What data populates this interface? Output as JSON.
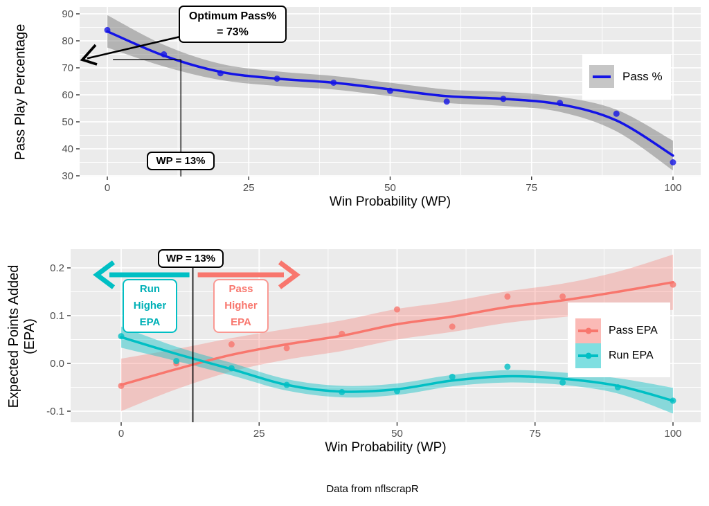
{
  "caption": "Data from nflscrapR",
  "colors": {
    "panel_bg": "#EBEBEB",
    "grid": "#FFFFFF",
    "tick_label": "#4D4D4D",
    "pass_pct_blue": "#1414E6",
    "pass_pct_band": "rgba(110,110,110,0.45)",
    "pass_epa_red": "#F8766D",
    "pass_epa_band": "rgba(248,118,109,0.33)",
    "run_epa_teal": "#00BFC4",
    "run_epa_band": "rgba(0,191,196,0.42)",
    "annotation_line": "#000000"
  },
  "chart_data": [
    {
      "type": "scatter",
      "title": "",
      "xlabel": "Win Probability (WP)",
      "ylabel": "Pass Play Percentage",
      "xlim": [
        -5,
        105
      ],
      "ylim": [
        29.7,
        92.6
      ],
      "grid": true,
      "x_tick_vals": [
        0,
        25,
        50,
        75,
        100
      ],
      "x_tick_labels": [
        "0",
        "25",
        "50",
        "75",
        "100"
      ],
      "y_tick_vals": [
        90,
        80,
        70,
        60,
        50,
        40,
        30
      ],
      "y_tick_labels": [
        "90",
        "80",
        "70",
        "60",
        "50",
        "40",
        "30"
      ],
      "legend_position": "inside-right",
      "legend": {
        "items": [
          {
            "label": "Pass %",
            "line_color": "#1414E6",
            "key_fill": "#C6C6C6"
          }
        ]
      },
      "series": [
        {
          "name": "Pass %",
          "color": "#1414E6",
          "band_color": "rgba(110,110,110,0.45)",
          "x": [
            0,
            10,
            20,
            30,
            40,
            50,
            60,
            70,
            80,
            90,
            100
          ],
          "points": [
            84,
            75,
            68,
            66,
            64.5,
            61.5,
            57.5,
            58.5,
            57,
            53,
            35
          ],
          "trend": [
            83.5,
            74.5,
            68.5,
            66,
            64.5,
            62,
            59.5,
            58.5,
            56.5,
            50.5,
            37.5
          ],
          "band_halfwidth": [
            6,
            4,
            3,
            2.7,
            2.5,
            2.5,
            2.5,
            2.6,
            2.8,
            4,
            5.5
          ]
        }
      ],
      "annotations": {
        "optimum_label_line1": "Optimum Pass%",
        "optimum_label_line2": "= 73%",
        "optimum_value_pct": 73,
        "wp_label": "WP = 13%",
        "wp_value_pct": 13
      }
    },
    {
      "type": "scatter",
      "title": "",
      "xlabel": "Win Probability (WP)",
      "ylabel_line1": "Expected Points Added",
      "ylabel_line2": "(EPA)",
      "xlim": [
        -9,
        105
      ],
      "ylim": [
        -0.123,
        0.239
      ],
      "grid": true,
      "x_tick_vals": [
        0,
        25,
        50,
        75,
        100
      ],
      "x_tick_labels": [
        "0",
        "25",
        "50",
        "75",
        "100"
      ],
      "y_tick_vals": [
        0.2,
        0.1,
        0.0,
        -0.1
      ],
      "y_tick_labels": [
        "0.2",
        "0.1",
        "0.0",
        "-0.1"
      ],
      "legend_position": "inside-right",
      "legend": {
        "items": [
          {
            "label": "Pass EPA",
            "line_color": "#F8766D",
            "key_fill": "rgba(248,118,109,0.5)"
          },
          {
            "label": "Run EPA",
            "line_color": "#00BFC4",
            "key_fill": "rgba(0,191,196,0.5)"
          }
        ]
      },
      "series": [
        {
          "name": "Pass EPA",
          "color": "#F8766D",
          "band_color": "rgba(248,118,109,0.33)",
          "x": [
            0,
            10,
            20,
            30,
            40,
            50,
            60,
            70,
            80,
            90,
            100
          ],
          "points": [
            -0.047,
            0.0,
            0.04,
            0.032,
            0.062,
            0.113,
            0.077,
            0.14,
            0.14,
            null,
            0.165
          ],
          "trend": [
            -0.045,
            -0.012,
            0.018,
            0.04,
            0.058,
            0.082,
            0.098,
            0.118,
            0.132,
            0.15,
            0.17
          ],
          "band_halfwidth": [
            0.055,
            0.042,
            0.035,
            0.032,
            0.032,
            0.032,
            0.032,
            0.033,
            0.035,
            0.042,
            0.058
          ]
        },
        {
          "name": "Run EPA",
          "color": "#00BFC4",
          "band_color": "rgba(0,191,196,0.42)",
          "x": [
            0,
            10,
            20,
            30,
            40,
            50,
            60,
            70,
            80,
            90,
            100
          ],
          "points": [
            0.057,
            0.005,
            -0.01,
            -0.045,
            -0.06,
            -0.058,
            -0.028,
            -0.007,
            -0.04,
            -0.05,
            -0.078
          ],
          "trend": [
            0.055,
            0.02,
            -0.012,
            -0.045,
            -0.059,
            -0.054,
            -0.036,
            -0.027,
            -0.032,
            -0.047,
            -0.078
          ],
          "band_halfwidth": [
            0.022,
            0.015,
            0.013,
            0.012,
            0.012,
            0.012,
            0.012,
            0.013,
            0.013,
            0.016,
            0.027
          ]
        }
      ],
      "annotations": {
        "wp_label": "WP = 13%",
        "wp_value_pct": 13,
        "run_box": [
          "Run",
          "Higher",
          "EPA"
        ],
        "pass_box": [
          "Pass",
          "Higher",
          "EPA"
        ]
      }
    }
  ]
}
